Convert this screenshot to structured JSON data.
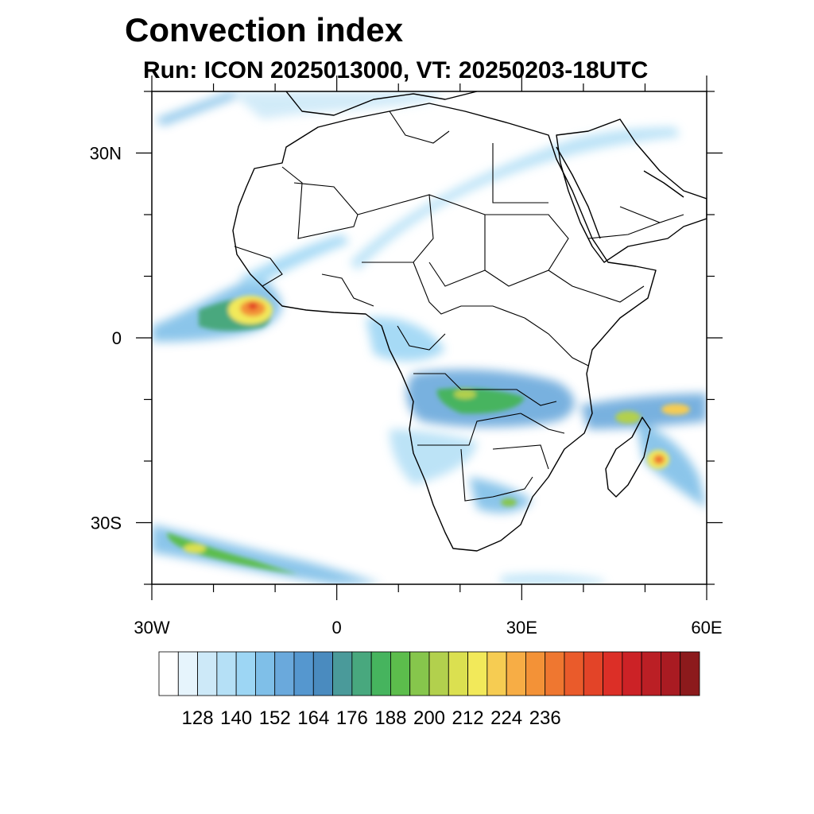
{
  "title": "Convection index",
  "subtitle": "Run: ICON 2025013000,  VT: 20250203-18UTC",
  "map": {
    "region": "Africa",
    "projection": "lat-lon",
    "lon_range": [
      -30,
      60
    ],
    "lat_range": [
      -40,
      40
    ],
    "lon_ticks": [
      {
        "value": -30,
        "label": "30W"
      },
      {
        "value": 0,
        "label": "0"
      },
      {
        "value": 30,
        "label": "30E"
      },
      {
        "value": 60,
        "label": "60E"
      }
    ],
    "lat_ticks": [
      {
        "value": 30,
        "label": "30N"
      },
      {
        "value": 0,
        "label": "0"
      },
      {
        "value": -30,
        "label": "30S"
      }
    ]
  },
  "colorbar": {
    "colors": [
      "#ffffff",
      "#e6f4fc",
      "#cde9f8",
      "#b5e0f6",
      "#9dd6f4",
      "#7fbfe8",
      "#6aa9dc",
      "#5597cf",
      "#4a8bbf",
      "#4a9a9a",
      "#48a87e",
      "#46b45e",
      "#5cbd4c",
      "#86c64c",
      "#b2d04d",
      "#dbe050",
      "#f2e95a",
      "#f6cc52",
      "#f7ad45",
      "#f39237",
      "#ef7730",
      "#ea5b2b",
      "#e34428",
      "#dc2f27",
      "#cc2226",
      "#bb1f25",
      "#a91b22",
      "#8c1a1c"
    ],
    "tick_labels": [
      "128",
      "140",
      "152",
      "164",
      "176",
      "188",
      "200",
      "212",
      "224",
      "236"
    ]
  }
}
